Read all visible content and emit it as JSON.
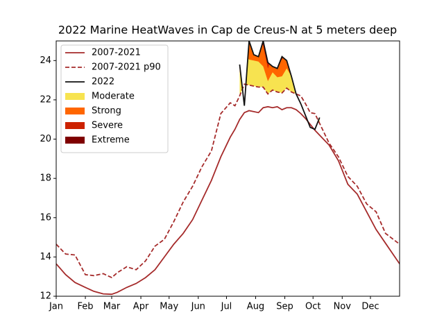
{
  "chart_data": {
    "type": "line",
    "title": "2022 Marine HeatWaves in Cap de Creus-N at 5 meters deep",
    "x": [
      0,
      10,
      20,
      31,
      40,
      50,
      59,
      65,
      75,
      85,
      95,
      105,
      115,
      125,
      135,
      145,
      155,
      165,
      175,
      185,
      190,
      195,
      200,
      205,
      210,
      215,
      220,
      225,
      230,
      235,
      240,
      245,
      250,
      255,
      260,
      265,
      270,
      275,
      280,
      290,
      300,
      310,
      320,
      330,
      340,
      350,
      365
    ],
    "series": [
      {
        "name": "2007-2021",
        "color": "#a52a2a",
        "dashed": false,
        "values": [
          13.65,
          13.1,
          12.7,
          12.45,
          12.25,
          12.12,
          12.1,
          12.2,
          12.45,
          12.65,
          12.95,
          13.35,
          14.0,
          14.65,
          15.2,
          15.9,
          16.9,
          17.9,
          19.1,
          20.1,
          20.5,
          21.0,
          21.35,
          21.45,
          21.4,
          21.35,
          21.6,
          21.65,
          21.6,
          21.65,
          21.5,
          21.6,
          21.6,
          21.5,
          21.3,
          21.05,
          20.75,
          20.45,
          20.2,
          19.7,
          18.9,
          17.7,
          17.2,
          16.3,
          15.4,
          14.7,
          13.65
        ]
      },
      {
        "name": "2007-2021 p90",
        "color": "#a52a2a",
        "dashed": true,
        "values": [
          14.65,
          14.15,
          14.1,
          13.1,
          13.05,
          13.15,
          12.95,
          13.2,
          13.5,
          13.35,
          13.8,
          14.55,
          14.9,
          15.8,
          16.8,
          17.6,
          18.6,
          19.4,
          21.3,
          21.85,
          21.7,
          22.2,
          22.8,
          22.75,
          22.7,
          22.65,
          22.65,
          22.3,
          22.5,
          22.4,
          22.35,
          22.6,
          22.4,
          22.3,
          22.2,
          21.8,
          21.35,
          21.3,
          20.8,
          19.8,
          19.1,
          18.1,
          17.6,
          16.7,
          16.3,
          15.2,
          14.65
        ]
      },
      {
        "name": "2022",
        "color": "#111111",
        "dashed": false,
        "values": [
          null,
          null,
          null,
          null,
          null,
          null,
          null,
          null,
          null,
          null,
          null,
          null,
          null,
          null,
          null,
          null,
          null,
          null,
          null,
          null,
          null,
          23.8,
          21.7,
          25.0,
          24.3,
          24.2,
          25.0,
          23.9,
          23.7,
          23.6,
          24.2,
          24.0,
          23.2,
          22.3,
          21.8,
          21.2,
          20.6,
          20.5,
          21.1,
          null,
          null,
          null,
          null,
          null,
          null,
          null,
          null
        ]
      }
    ],
    "heatwave_categories": [
      {
        "name": "Moderate",
        "color": "#f7e350"
      },
      {
        "name": "Strong",
        "color": "#ff6600"
      },
      {
        "name": "Severe",
        "color": "#cc2200"
      },
      {
        "name": "Extreme",
        "color": "#7f0000"
      }
    ],
    "xlim": [
      0,
      365
    ],
    "xticks": [
      {
        "value": 0,
        "label": "Jan"
      },
      {
        "value": 31,
        "label": "Feb"
      },
      {
        "value": 59,
        "label": "Mar"
      },
      {
        "value": 90,
        "label": "Apr"
      },
      {
        "value": 120,
        "label": "May"
      },
      {
        "value": 151,
        "label": "Jun"
      },
      {
        "value": 181,
        "label": "Jul"
      },
      {
        "value": 212,
        "label": "Aug"
      },
      {
        "value": 243,
        "label": "Sep"
      },
      {
        "value": 273,
        "label": "Oct"
      },
      {
        "value": 304,
        "label": "Nov"
      },
      {
        "value": 334,
        "label": "Dec"
      }
    ],
    "ylim": [
      12,
      25
    ],
    "yticks": [
      12,
      14,
      16,
      18,
      20,
      22,
      24
    ],
    "legend": "upper left"
  }
}
